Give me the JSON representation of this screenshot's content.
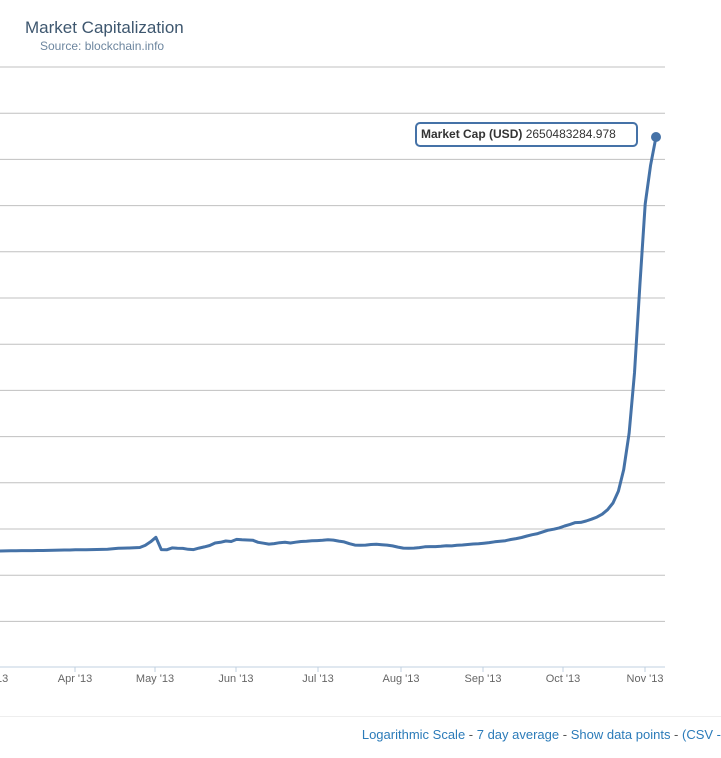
{
  "chart_data": {
    "type": "line",
    "title": "Market Capitalization",
    "subtitle": "Source: blockchain.info",
    "xlabel": "",
    "ylabel": "",
    "x_tick_labels": [
      "Apr '13",
      "May '13",
      "Jun '13",
      "Jul '13",
      "Aug '13",
      "Sep '13",
      "Oct '13",
      "Nov '13"
    ],
    "grid": true,
    "line_color": "#4572a7",
    "series": [
      {
        "values": [
          0.1,
          0.7,
          1.4,
          1.9,
          2.3,
          2.6,
          2.7,
          2.9,
          3.0,
          3.6,
          4.4,
          5.8,
          6.6,
          6.7,
          7.4,
          7.9,
          8.4,
          9.2,
          9.5,
          10.4,
          11.6,
          13.9,
          17.4,
          18.5,
          19.2,
          20.3,
          22.7,
          36.0,
          58.7,
          87.6,
          9.0,
          8.0,
          20.1,
          17.5,
          16.8,
          10.8,
          9.1,
          18.4,
          26.1,
          35.2,
          51.3,
          55.4,
          63.8,
          60.6,
          74.2,
          72.0,
          70.3,
          69.0,
          55.5,
          49.8,
          44.4,
          47.5,
          53.0,
          55.4,
          51.1,
          56.3,
          61.1,
          62.3,
          65.4,
          66.8,
          68.3,
          71.8,
          69.5,
          63.7,
          58.1,
          46.9,
          37.7,
          36.3,
          38.0,
          41.8,
          43.5,
          40.4,
          37.9,
          32.6,
          24.8,
          18.6,
          17.0,
          18.4,
          22.0,
          27.0,
          28.3,
          28.4,
          30.4,
          33.1,
          32.5,
          36.3,
          38.6,
          41.3,
          44.7,
          46.1,
          49.9,
          53.9,
          58.7,
          62.3,
          66.2,
          73.6,
          79.7,
          86.4,
          96.2,
          104.4,
          111.4,
          122.7,
          133.9,
          139.3,
          148.2,
          160.0,
          170.3,
          181.5,
          183.4,
          191.9,
          203.5,
          217.3,
          235.4,
          264.4,
          307.6,
          383.5,
          521.4,
          752.7,
          1140.3,
          1704.4,
          2221.4,
          2470.6,
          2650.5
        ]
      }
    ],
    "tooltip": {
      "label": "Market Cap (USD)",
      "value": "2650483284.978"
    }
  },
  "footer": {
    "log_scale": "Logarithmic Scale",
    "sep1": " - ",
    "avg": "7 day average",
    "sep2": " - ",
    "points": "Show data points",
    "sep3": " - ",
    "csv": "(CSV -"
  }
}
